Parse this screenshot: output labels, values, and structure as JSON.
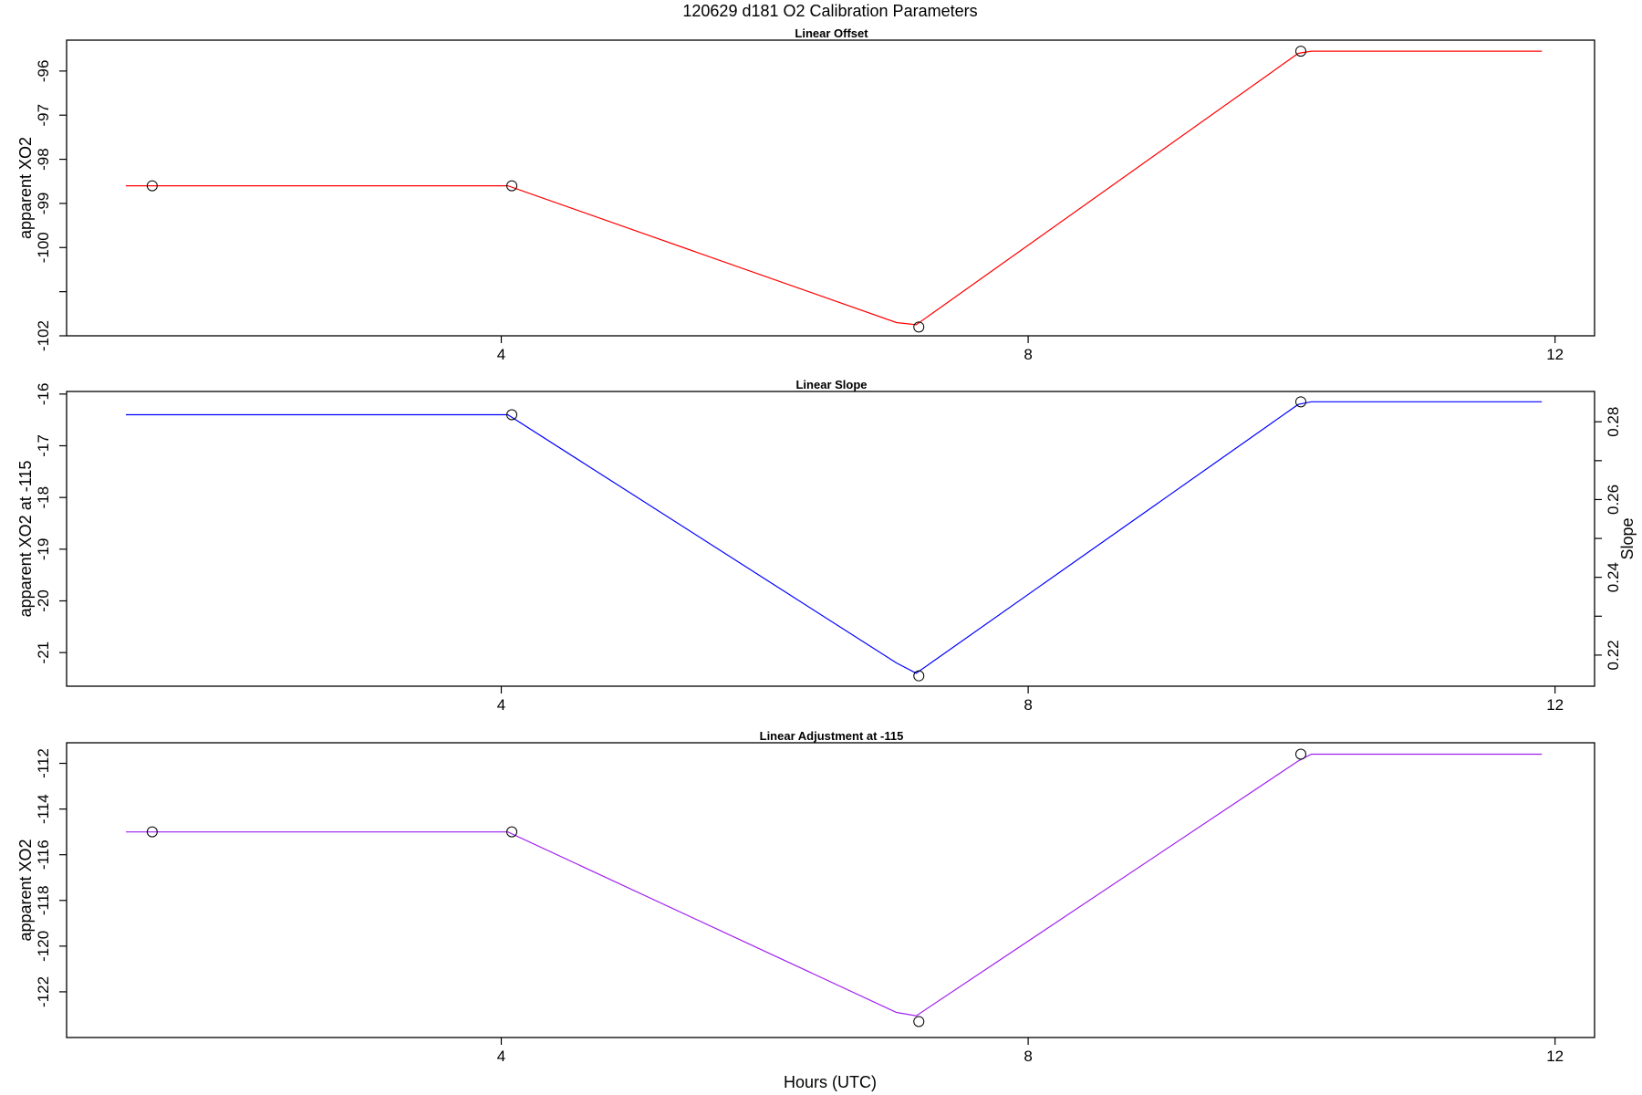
{
  "figure": {
    "title": "120629   d181   O2 Calibration Parameters",
    "xlabel": "Hours (UTC)"
  },
  "chart_data": [
    {
      "type": "line",
      "title": "Linear Offset",
      "xlabel": "",
      "ylabel": "apparent XO2",
      "xlim": [
        0.7,
        12.3
      ],
      "ylim": [
        -102,
        -95.3
      ],
      "x_ticks": [
        4,
        8,
        12
      ],
      "y_ticks": [
        -102,
        -101,
        -100,
        -99,
        -98,
        -97,
        -96
      ],
      "y_tick_labels": [
        "-102",
        "",
        "-100",
        "-99",
        "-98",
        "-97",
        "-96"
      ],
      "grid": false,
      "color": "#ff0000",
      "line": {
        "x": [
          1.15,
          4.05,
          7.0,
          7.15,
          10.05,
          10.15,
          11.9
        ],
        "y": [
          -98.6,
          -98.6,
          -101.7,
          -101.75,
          -95.6,
          -95.55,
          -95.55
        ]
      },
      "points": {
        "x": [
          1.35,
          4.08,
          7.17,
          10.07
        ],
        "y": [
          -98.6,
          -98.6,
          -101.8,
          -95.55
        ]
      }
    },
    {
      "type": "line",
      "title": "Linear Slope",
      "xlabel": "",
      "ylabel": "apparent XO2 at -115",
      "y2label": "Slope",
      "xlim": [
        0.7,
        12.3
      ],
      "ylim": [
        -21.65,
        -15.95
      ],
      "x_ticks": [
        4,
        8,
        12
      ],
      "y_ticks": [
        -21,
        -20,
        -19,
        -18,
        -17,
        -16
      ],
      "y_tick_labels": [
        "-21",
        "-20",
        "-19",
        "-18",
        "-17",
        "-16"
      ],
      "y2lim": [
        0.212,
        0.2878
      ],
      "y2_ticks": [
        0.22,
        0.23,
        0.24,
        0.25,
        0.26,
        0.27,
        0.28
      ],
      "y2_tick_labels": [
        "0.22",
        "",
        "0.24",
        "",
        "0.26",
        "",
        "0.28"
      ],
      "grid": false,
      "color": "#0000ff",
      "line": {
        "x": [
          1.15,
          4.05,
          7.0,
          7.15,
          10.05,
          10.15,
          11.9
        ],
        "y": [
          -16.4,
          -16.4,
          -21.2,
          -21.4,
          -16.2,
          -16.15,
          -16.15
        ]
      },
      "points": {
        "x": [
          4.08,
          7.17,
          10.07
        ],
        "y": [
          -16.4,
          -21.45,
          -16.15
        ]
      }
    },
    {
      "type": "line",
      "title": "Linear Adjustment at -115",
      "xlabel": "Hours (UTC)",
      "ylabel": "apparent XO2",
      "xlim": [
        0.7,
        12.3
      ],
      "ylim": [
        -124,
        -111.1
      ],
      "x_ticks": [
        4,
        8,
        12
      ],
      "y_ticks": [
        -122,
        -120,
        -118,
        -116,
        -114,
        -112
      ],
      "y_tick_labels": [
        "-122",
        "-120",
        "-118",
        "-116",
        "-114",
        "-112"
      ],
      "grid": false,
      "color": "#a020f0",
      "line": {
        "x": [
          1.15,
          4.05,
          7.0,
          7.15,
          10.05,
          10.15,
          11.9
        ],
        "y": [
          -115,
          -115,
          -122.9,
          -123.05,
          -111.9,
          -111.6,
          -111.6
        ]
      },
      "points": {
        "x": [
          1.35,
          4.08,
          7.17,
          10.07
        ],
        "y": [
          -115,
          -115,
          -123.3,
          -111.6
        ]
      }
    }
  ]
}
